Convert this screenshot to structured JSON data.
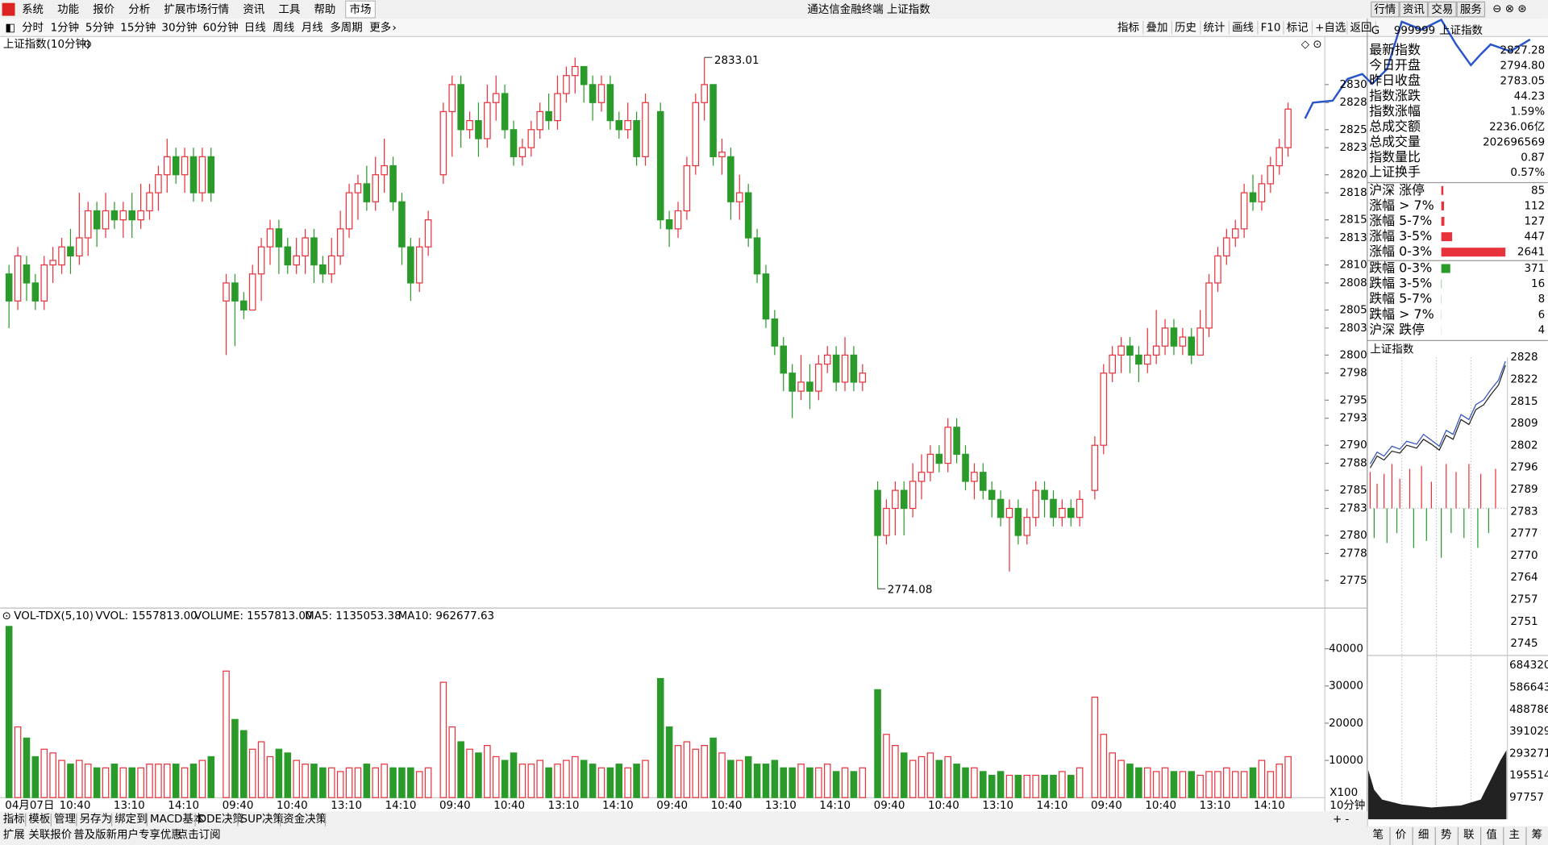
{
  "menu": {
    "items": [
      "系统",
      "功能",
      "报价",
      "分析",
      "扩展市场行情",
      "资讯",
      "工具",
      "帮助"
    ],
    "market": "市场",
    "title": "通达信金融终端 上证指数",
    "buttons": [
      "行情",
      "资讯",
      "交易",
      "服务"
    ]
  },
  "toolbar": {
    "periods": [
      "分时",
      "1分钟",
      "5分钟",
      "15分钟",
      "30分钟",
      "60分钟",
      "日线",
      "周线",
      "月线",
      "多周期"
    ],
    "more": "更多",
    "tools": [
      "指标",
      "叠加",
      "历史",
      "统计",
      "画线",
      "F10",
      "标记",
      "+自选",
      "返回"
    ]
  },
  "chart_data": {
    "type": "candlestick",
    "title": "上证指数(10分钟)",
    "up_color": "#e8323c",
    "down_color": "#2a9a2a",
    "candles": [
      [
        2809,
        2806,
        2810,
        2803
      ],
      [
        2806,
        2811,
        2812,
        2805
      ],
      [
        2810,
        2808,
        2811,
        2806
      ],
      [
        2808,
        2806,
        2809,
        2805
      ],
      [
        2806,
        2810,
        2811,
        2805
      ],
      [
        2810,
        2810.5,
        2812,
        2808
      ],
      [
        2810,
        2812,
        2813,
        2809
      ],
      [
        2812,
        2811,
        2814,
        2809
      ],
      [
        2811,
        2813,
        2818,
        2810
      ],
      [
        2813,
        2816,
        2817,
        2811
      ],
      [
        2816,
        2814,
        2817,
        2812
      ],
      [
        2814,
        2816,
        2818,
        2813
      ],
      [
        2816,
        2815,
        2817,
        2814
      ],
      [
        2815,
        2816,
        2817,
        2813
      ],
      [
        2816,
        2815,
        2818,
        2813
      ],
      [
        2815,
        2816,
        2819,
        2814
      ],
      [
        2816,
        2818,
        2819,
        2815
      ],
      [
        2818,
        2820,
        2821,
        2816
      ],
      [
        2820,
        2822,
        2824,
        2818
      ],
      [
        2822,
        2820,
        2823,
        2819
      ],
      [
        2820,
        2822,
        2823,
        2818
      ],
      [
        2822,
        2818,
        2823,
        2817
      ],
      [
        2818,
        2822,
        2823,
        2817
      ],
      [
        2822,
        2818,
        2823,
        2817
      ],
      [
        2806,
        2808,
        2809,
        2800
      ],
      [
        2808,
        2806,
        2809,
        2801
      ],
      [
        2806,
        2805,
        2807,
        2804
      ],
      [
        2805,
        2809,
        2810,
        2805
      ],
      [
        2809,
        2812,
        2813,
        2806
      ],
      [
        2812,
        2814,
        2815,
        2810
      ],
      [
        2814,
        2812,
        2815,
        2809
      ],
      [
        2812,
        2810,
        2813,
        2809
      ],
      [
        2810,
        2811,
        2813,
        2809
      ],
      [
        2811,
        2813,
        2814,
        2809
      ],
      [
        2813,
        2810,
        2814,
        2808
      ],
      [
        2810,
        2809,
        2811,
        2808
      ],
      [
        2809,
        2811,
        2813,
        2808
      ],
      [
        2811,
        2814,
        2816,
        2810
      ],
      [
        2814,
        2818,
        2819,
        2813
      ],
      [
        2818,
        2819,
        2820,
        2815
      ],
      [
        2819,
        2817,
        2821,
        2816
      ],
      [
        2817,
        2820,
        2822,
        2816
      ],
      [
        2820,
        2821,
        2824,
        2818
      ],
      [
        2821,
        2817,
        2822,
        2816
      ],
      [
        2817,
        2812,
        2818,
        2810
      ],
      [
        2812,
        2808,
        2813,
        2806
      ],
      [
        2808,
        2812,
        2813,
        2807
      ],
      [
        2812,
        2815,
        2816,
        2811
      ],
      [
        2820,
        2827,
        2828,
        2819
      ],
      [
        2827,
        2830,
        2831,
        2822
      ],
      [
        2830,
        2825,
        2831,
        2823
      ],
      [
        2825,
        2826,
        2827,
        2824
      ],
      [
        2826,
        2824,
        2828,
        2822
      ],
      [
        2824,
        2828,
        2830,
        2823
      ],
      [
        2828,
        2829,
        2831,
        2826
      ],
      [
        2829,
        2825,
        2830,
        2824
      ],
      [
        2825,
        2822,
        2826,
        2821
      ],
      [
        2822,
        2823,
        2824,
        2821
      ],
      [
        2823,
        2825,
        2826,
        2822
      ],
      [
        2825,
        2827,
        2828,
        2824
      ],
      [
        2827,
        2826,
        2829,
        2825
      ],
      [
        2826,
        2829,
        2831,
        2825
      ],
      [
        2829,
        2831,
        2832,
        2828
      ],
      [
        2831,
        2832,
        2833,
        2829
      ],
      [
        2832,
        2830,
        2832,
        2828
      ],
      [
        2830,
        2828,
        2831,
        2826
      ],
      [
        2828,
        2830,
        2831,
        2827
      ],
      [
        2830,
        2826,
        2831,
        2825
      ],
      [
        2826,
        2825,
        2827,
        2824
      ],
      [
        2825,
        2826,
        2828,
        2824
      ],
      [
        2826,
        2822,
        2827,
        2821
      ],
      [
        2822,
        2828,
        2829,
        2821
      ],
      [
        2827,
        2815,
        2828,
        2814
      ],
      [
        2815,
        2814,
        2816,
        2812
      ],
      [
        2814,
        2816,
        2817,
        2813
      ],
      [
        2816,
        2821,
        2822,
        2815
      ],
      [
        2821,
        2828,
        2829,
        2820
      ],
      [
        2828,
        2830,
        2833.01,
        2826
      ],
      [
        2830,
        2822,
        2830,
        2821
      ],
      [
        2822,
        2822.5,
        2824,
        2820
      ],
      [
        2822,
        2817,
        2823,
        2815
      ],
      [
        2817,
        2818,
        2820,
        2815
      ],
      [
        2818,
        2813,
        2819,
        2812
      ],
      [
        2813,
        2809,
        2814,
        2808
      ],
      [
        2809,
        2804,
        2810,
        2803
      ],
      [
        2804,
        2801,
        2805,
        2800
      ],
      [
        2801,
        2798,
        2802,
        2796
      ],
      [
        2798,
        2796,
        2799,
        2793
      ],
      [
        2796,
        2797,
        2800,
        2795
      ],
      [
        2797,
        2796,
        2799,
        2794
      ],
      [
        2796,
        2799,
        2800,
        2795
      ],
      [
        2799,
        2800,
        2801,
        2798
      ],
      [
        2800,
        2797,
        2801,
        2796
      ],
      [
        2797,
        2800,
        2802,
        2796
      ],
      [
        2800,
        2797,
        2801,
        2796
      ],
      [
        2797,
        2798,
        2799,
        2796
      ],
      [
        2785,
        2780,
        2786,
        2774.08
      ],
      [
        2780,
        2783,
        2784,
        2779
      ],
      [
        2783,
        2785,
        2786,
        2780
      ],
      [
        2785,
        2783,
        2786,
        2780
      ],
      [
        2783,
        2786,
        2788,
        2782
      ],
      [
        2786,
        2787,
        2789,
        2784
      ],
      [
        2787,
        2789,
        2790,
        2786
      ],
      [
        2789,
        2788,
        2790,
        2787
      ],
      [
        2788,
        2792,
        2793,
        2787
      ],
      [
        2792,
        2789,
        2793,
        2788
      ],
      [
        2789,
        2786,
        2790,
        2785
      ],
      [
        2786,
        2787,
        2788,
        2784
      ],
      [
        2787,
        2785,
        2788,
        2784
      ],
      [
        2785,
        2784,
        2786,
        2782
      ],
      [
        2784,
        2782,
        2785,
        2781
      ],
      [
        2782,
        2783,
        2784,
        2776
      ],
      [
        2783,
        2780,
        2784,
        2779
      ],
      [
        2780,
        2782,
        2783,
        2779
      ],
      [
        2782,
        2785,
        2786,
        2781
      ],
      [
        2785,
        2784,
        2786,
        2782
      ],
      [
        2784,
        2782,
        2785,
        2781
      ],
      [
        2782,
        2783,
        2784,
        2781
      ],
      [
        2783,
        2782,
        2784,
        2781
      ],
      [
        2782,
        2784,
        2785,
        2781
      ],
      [
        2785,
        2790,
        2791,
        2784
      ],
      [
        2790,
        2798,
        2799,
        2789
      ],
      [
        2798,
        2800,
        2801,
        2797
      ],
      [
        2800,
        2801,
        2802,
        2798
      ],
      [
        2801,
        2800,
        2802,
        2798
      ],
      [
        2800,
        2799,
        2801,
        2797
      ],
      [
        2799,
        2800,
        2803,
        2798
      ],
      [
        2800,
        2801,
        2805,
        2799
      ],
      [
        2801,
        2803,
        2804,
        2800
      ],
      [
        2803,
        2801,
        2804,
        2800
      ],
      [
        2801,
        2802,
        2803,
        2800
      ],
      [
        2802,
        2800,
        2803,
        2799
      ],
      [
        2800,
        2803,
        2805,
        2800
      ],
      [
        2803,
        2808,
        2809,
        2802
      ],
      [
        2808,
        2811,
        2812,
        2807
      ],
      [
        2811,
        2813,
        2814,
        2810
      ],
      [
        2813,
        2814,
        2815,
        2812
      ],
      [
        2814,
        2818,
        2819,
        2813
      ],
      [
        2818,
        2817,
        2820,
        2816
      ],
      [
        2817,
        2819,
        2820,
        2816
      ],
      [
        2819,
        2821,
        2822,
        2818
      ],
      [
        2821,
        2823,
        2824,
        2820
      ],
      [
        2823,
        2827.28,
        2828,
        2822
      ]
    ],
    "ylim": [
      2772.6,
      2835.0
    ],
    "yticks": [
      2830,
      2828,
      2825,
      2823,
      2820,
      2818,
      2815,
      2813,
      2810,
      2808,
      2805,
      2803,
      2800,
      2798,
      2795,
      2793,
      2790,
      2788,
      2785,
      2783,
      2780,
      2778,
      2775
    ],
    "high_label": 2833.01,
    "low_label": 2774.08,
    "volume": {
      "title": "VOL-TDX(5,10)",
      "vvol": "VVOL: 1557813.00",
      "volume": "VOLUME: 1557813.00",
      "ma5": "MA5: 1135053.38",
      "ma10": "MA10: 962677.63",
      "unit": "X100",
      "values": [
        46000,
        19000,
        16000,
        11000,
        13000,
        12000,
        10000,
        9000,
        10000,
        9000,
        8000,
        8000,
        9000,
        8000,
        8000,
        8000,
        9000,
        9000,
        9000,
        9000,
        8000,
        9000,
        10000,
        11000,
        34000,
        21000,
        18000,
        13000,
        15000,
        11000,
        13000,
        12000,
        10000,
        9000,
        9000,
        8000,
        8000,
        7000,
        8000,
        8000,
        9000,
        8000,
        9000,
        8000,
        8000,
        8000,
        7000,
        8000,
        31000,
        19000,
        15000,
        13000,
        12000,
        14000,
        11000,
        10000,
        12000,
        9000,
        9000,
        10000,
        8000,
        9000,
        10000,
        11000,
        10000,
        9000,
        8000,
        8000,
        9000,
        8000,
        9000,
        10000,
        32000,
        19000,
        14000,
        15000,
        13000,
        14000,
        16000,
        12000,
        10000,
        10000,
        11000,
        9000,
        9000,
        10000,
        8000,
        8000,
        9000,
        8000,
        8000,
        9000,
        7000,
        8000,
        7000,
        8000,
        29000,
        17000,
        14000,
        12000,
        10000,
        11000,
        12000,
        10000,
        11000,
        9000,
        8000,
        8000,
        7000,
        6000,
        7000,
        6000,
        6000,
        6000,
        6000,
        6000,
        6000,
        7000,
        6000,
        8000,
        27000,
        17000,
        12000,
        10000,
        9000,
        8000,
        8000,
        7000,
        8000,
        7000,
        7000,
        7000,
        6000,
        7000,
        7000,
        8000,
        7000,
        7000,
        8000,
        10000,
        7000,
        9000,
        11000
      ],
      "ylim": [
        0,
        50000
      ],
      "yticks": [
        10000,
        20000,
        30000,
        40000
      ]
    }
  },
  "time_labels": [
    "04月07日",
    "10:40",
    "13:10",
    "14:10",
    "09:40",
    "10:40",
    "13:10",
    "14:10",
    "09:40",
    "10:40",
    "13:10",
    "14:10",
    "09:40",
    "10:40",
    "13:10",
    "14:10",
    "09:40",
    "10:40",
    "13:10",
    "14:10",
    "09:40",
    "10:40",
    "13:10",
    "14:10"
  ],
  "period": "10分钟",
  "tabs": [
    "指标",
    "模板",
    "管理",
    "另存为",
    "绑定到",
    "MACD基本",
    "DDE决策",
    "SUP决策",
    "资金决策"
  ],
  "status": [
    "扩展",
    "关联报价",
    "普及版新用户专享优惠",
    "点击订阅"
  ],
  "quote": {
    "flag": "G",
    "code": "999999",
    "name": "上证指数",
    "rows": [
      {
        "label": "最新指数",
        "value": "2827.28",
        "color": "#e8323c"
      },
      {
        "label": "今日开盘",
        "value": "2794.80",
        "color": "#e8323c"
      },
      {
        "label": "昨日收盘",
        "value": "2783.05",
        "color": "#000"
      },
      {
        "label": "指数涨跌",
        "value": "44.23",
        "color": "#e8323c"
      },
      {
        "label": "指数涨幅",
        "value": "1.59%",
        "color": "#e8323c"
      },
      {
        "label": "总成交额",
        "value": "2236.06亿",
        "color": "#000"
      },
      {
        "label": "总成交量",
        "value": "202696569",
        "color": "#000"
      },
      {
        "label": "指数量比",
        "value": "0.87",
        "color": "#2a9a2a"
      },
      {
        "label": "上证换手",
        "value": "0.57%",
        "color": "#000"
      }
    ],
    "breadth": [
      {
        "label": "沪深 涨停",
        "value": 85,
        "color": "#e8323c"
      },
      {
        "label": "涨幅 > 7%",
        "value": 112,
        "color": "#e8323c"
      },
      {
        "label": "涨幅 5-7%",
        "value": 127,
        "color": "#e8323c"
      },
      {
        "label": "涨幅 3-5%",
        "value": 447,
        "color": "#e8323c"
      },
      {
        "label": "涨幅 0-3%",
        "value": 2641,
        "color": "#e8323c"
      },
      {
        "label": "跌幅 0-3%",
        "value": 371,
        "color": "#2a9a2a"
      },
      {
        "label": "跌幅 3-5%",
        "value": 16,
        "color": "#2a9a2a"
      },
      {
        "label": "跌幅 5-7%",
        "value": 8,
        "color": "#2a9a2a"
      },
      {
        "label": "跌幅 > 7%",
        "value": 6,
        "color": "#2a9a2a"
      },
      {
        "label": "沪深 跌停",
        "value": 4,
        "color": "#2a9a2a"
      }
    ]
  },
  "mini": {
    "title": "上证指数",
    "price_ticks": [
      "2828",
      "2822",
      "2815",
      "2809",
      "2802",
      "2796",
      "2789",
      "2783",
      "2777",
      "2770",
      "2764",
      "2757",
      "2751",
      "2745"
    ],
    "volume_ticks": [
      "684320",
      "586643",
      "488786",
      "391029",
      "293271",
      "195514",
      "97757"
    ]
  },
  "bottom_tabs": [
    "笔",
    "价",
    "细",
    "势",
    "联",
    "值",
    "主",
    "筹"
  ]
}
